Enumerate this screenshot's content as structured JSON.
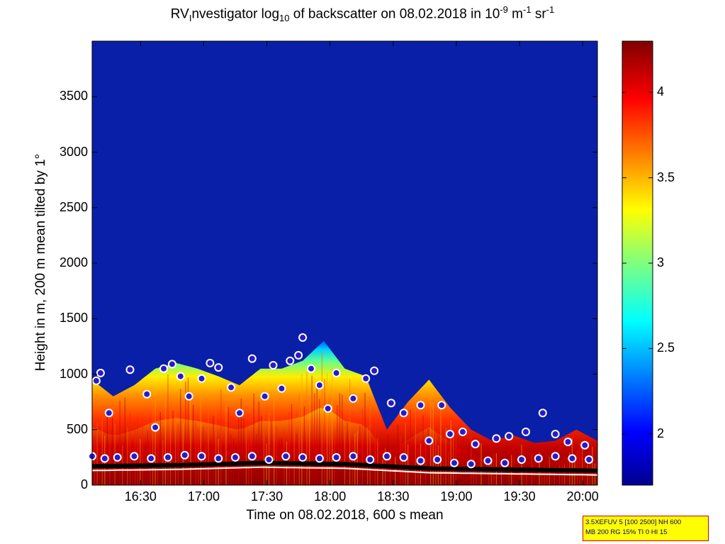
{
  "title": {
    "pre": "RV",
    "sub_i": "I",
    "main": "nvestigator log",
    "sub_10": "10",
    "rest": " of backscatter on 08.02.2018 in 10",
    "sup_9": "-9",
    "unit_m": " m",
    "sup_1a": "-1",
    "unit_sr": " sr",
    "sup_1b": "-1"
  },
  "xlabel": "Time on 08.02.2018, 600 s mean",
  "ylabel": "Height in m, 200 m mean tilted by 1°",
  "info_lines": [
    "3.5XEFUV 5 [100 2500] NH 600",
    "MB 200 RG 15% TI 0 HI 15"
  ],
  "colors": {
    "background_sky": "#0a1fa8",
    "marker_face": "#2a1ac8",
    "marker_edge": "#ffffff"
  },
  "chart_data": {
    "type": "heatmap",
    "xlabel": "Time on 08.02.2018, 600 s mean",
    "ylabel": "Height in m, 200 m mean tilted by 1°",
    "x_range": [
      "16:07",
      "20:07"
    ],
    "x_ticks": [
      "16:30",
      "17:00",
      "17:30",
      "18:00",
      "18:30",
      "19:00",
      "19:30",
      "20:00"
    ],
    "y_range": [
      0,
      4000
    ],
    "y_ticks": [
      0,
      500,
      1000,
      1500,
      2000,
      2500,
      3000,
      3500
    ],
    "colorbar": {
      "range": [
        1.7,
        4.3
      ],
      "ticks": [
        "2",
        "2.5",
        "3",
        "3.5",
        "4"
      ]
    },
    "cloud_top_profile": {
      "time_min": [
        0,
        10,
        20,
        30,
        40,
        50,
        60,
        70,
        80,
        90,
        100,
        110,
        120,
        130,
        140,
        150,
        160,
        170,
        180,
        190,
        200,
        210,
        220,
        230,
        240
      ],
      "height_m": [
        950,
        800,
        900,
        1050,
        1100,
        1050,
        980,
        900,
        1050,
        1050,
        1120,
        1300,
        1050,
        980,
        500,
        750,
        950,
        700,
        500,
        400,
        450,
        380,
        400,
        500,
        400
      ]
    },
    "markers_upper": {
      "time_min": [
        2,
        4,
        8,
        18,
        26,
        30,
        34,
        38,
        42,
        46,
        52,
        56,
        60,
        66,
        70,
        76,
        82,
        86,
        90,
        94,
        98,
        100,
        104,
        108,
        112,
        116,
        124,
        130,
        134,
        142,
        148,
        156,
        160,
        166,
        170,
        176,
        182,
        192,
        198,
        206,
        214,
        220,
        226,
        234
      ],
      "height_m": [
        940,
        1010,
        650,
        1040,
        820,
        520,
        1050,
        1090,
        980,
        800,
        960,
        1100,
        1060,
        880,
        650,
        1140,
        800,
        1080,
        870,
        1120,
        1170,
        1330,
        1050,
        900,
        690,
        1010,
        780,
        960,
        1030,
        740,
        650,
        720,
        400,
        720,
        460,
        480,
        370,
        420,
        440,
        480,
        650,
        460,
        390,
        360
      ]
    },
    "markers_lower": {
      "time_min": [
        0,
        6,
        12,
        20,
        28,
        36,
        44,
        52,
        60,
        68,
        76,
        84,
        92,
        100,
        108,
        116,
        124,
        132,
        140,
        148,
        156,
        164,
        172,
        180,
        188,
        196,
        204,
        212,
        220,
        228,
        236
      ],
      "height_m": [
        260,
        240,
        250,
        260,
        240,
        250,
        270,
        260,
        240,
        250,
        260,
        230,
        260,
        250,
        240,
        250,
        260,
        230,
        260,
        250,
        220,
        230,
        200,
        190,
        220,
        200,
        230,
        240,
        260,
        240,
        230
      ]
    },
    "boundary_layer_height_m": {
      "time_min": [
        0,
        40,
        80,
        120,
        160,
        200,
        240
      ],
      "height_m": [
        170,
        180,
        200,
        190,
        150,
        140,
        130
      ]
    }
  }
}
